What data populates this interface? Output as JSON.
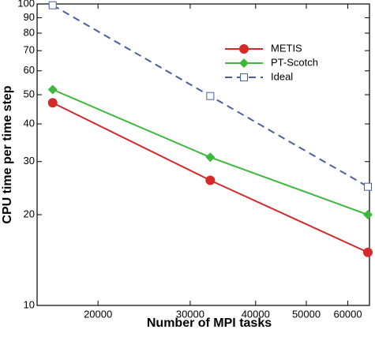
{
  "chart_data": {
    "type": "line",
    "x_label": "Number of MPI tasks",
    "y_label": "CPU time per time step",
    "x": [
      16384,
      32768,
      65536
    ],
    "series": [
      {
        "name": "METIS",
        "color": "#d42a2a",
        "marker": "circle",
        "dash": false,
        "values": [
          47,
          26,
          15
        ]
      },
      {
        "name": "PT-Scotch",
        "color": "#3cb83c",
        "marker": "diamond",
        "dash": false,
        "values": [
          52,
          31,
          20
        ]
      },
      {
        "name": "Ideal",
        "color": "#4a5f9e",
        "marker": "square",
        "dash": true,
        "values": [
          99,
          49.5,
          24.75
        ]
      }
    ],
    "xlim": [
      15300,
      66000
    ],
    "xticks": [
      20000,
      30000,
      40000,
      50000,
      60000
    ],
    "ylim": [
      10,
      100
    ],
    "yticks": [
      10,
      20,
      30,
      40,
      50,
      60,
      70,
      80,
      90,
      100
    ],
    "log_x": true,
    "log_y": true,
    "grid": false,
    "legend": "upper right"
  }
}
